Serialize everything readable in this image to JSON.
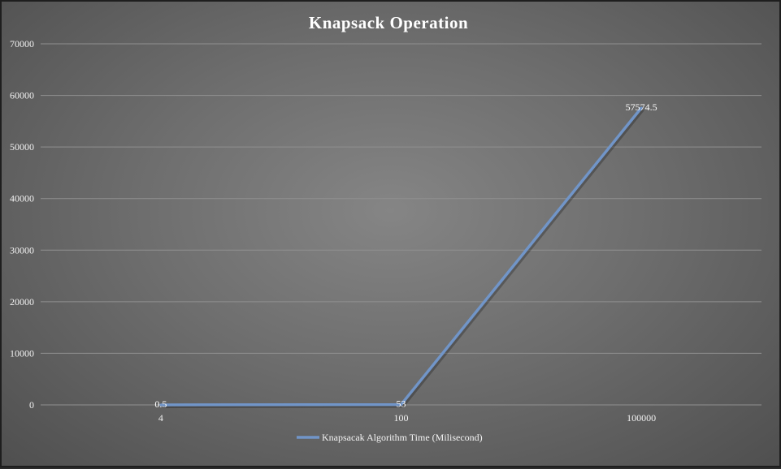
{
  "chart_data": {
    "type": "line",
    "title": "Knapsack Operation",
    "categories": [
      "4",
      "100",
      "100000"
    ],
    "series": [
      {
        "name": "Knapsacak Algorithm Time (Milisecond)",
        "values": [
          0.5,
          53,
          57574.5
        ],
        "data_labels": [
          "0.5",
          "53",
          "57574.5"
        ]
      }
    ],
    "y_ticks": [
      "0",
      "10000",
      "20000",
      "30000",
      "40000",
      "50000",
      "60000",
      "70000"
    ],
    "ylim": [
      0,
      70000
    ],
    "grid": true,
    "legend_position": "bottom",
    "colors": {
      "series_line": "#7195c8",
      "background_center": "#858585",
      "background_edge": "#4f4f4f",
      "text": "#f2f2f2"
    }
  }
}
